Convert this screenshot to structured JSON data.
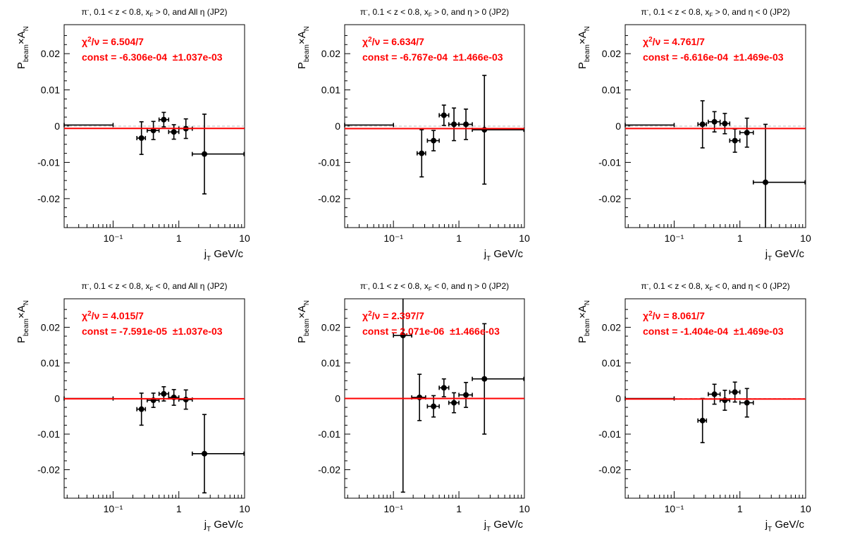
{
  "colors": {
    "fit": "#ff0000",
    "points": "#000000",
    "zero_line": "#bbbbbb",
    "background": "#ffffff"
  },
  "chart_data": [
    {
      "type": "scatter",
      "title": "π⁻, 0.1 < z < 0.8, x_F > 0, and All η (JP2)",
      "title_parts": {
        "prefix": "π",
        "prefix_sup": "-",
        "mid": ", 0.1 < z < 0.8, x",
        "mid_sub": "F",
        "suffix": " > 0, and All η (JP2)"
      },
      "xlabel": "j_T GeV/c",
      "xlabel_parts": {
        "main": "j",
        "sub": "T",
        "unit": "GeV/c"
      },
      "ylabel": "P_beam×A_N",
      "ylabel_parts": {
        "p": "P",
        "p_sub": "beam",
        "times": "×A",
        "a_sub": "N"
      },
      "xscale": "log",
      "xlim": [
        0.018,
        10
      ],
      "ylim": [
        -0.028,
        0.028
      ],
      "yticks": [
        "-0.02",
        "-0.01",
        "0",
        "0.01",
        "0.02"
      ],
      "ytick_values": [
        -0.02,
        -0.01,
        0,
        0.01,
        0.02
      ],
      "xticks": [
        "10⁻¹",
        "1",
        "10"
      ],
      "xtick_values": [
        0.1,
        1,
        10
      ],
      "points": [
        {
          "x": 0.055,
          "y": 0.0003,
          "xlo": 0.018,
          "xhi": 0.1,
          "yerr": 0
        },
        {
          "x": 0.27,
          "y": -0.0033,
          "xlo": 0.23,
          "xhi": 0.31,
          "yerr": 0.0045
        },
        {
          "x": 0.41,
          "y": -0.0012,
          "xlo": 0.33,
          "xhi": 0.5,
          "yerr": 0.0025
        },
        {
          "x": 0.59,
          "y": 0.0018,
          "xlo": 0.5,
          "xhi": 0.7,
          "yerr": 0.002
        },
        {
          "x": 0.84,
          "y": -0.0016,
          "xlo": 0.7,
          "xhi": 1.0,
          "yerr": 0.002
        },
        {
          "x": 1.28,
          "y": -0.0007,
          "xlo": 1.0,
          "xhi": 1.6,
          "yerr": 0.0027
        },
        {
          "x": 2.45,
          "y": -0.0077,
          "xlo": 1.6,
          "xhi": 9.8,
          "yerr": 0.011
        }
      ],
      "fit": {
        "chi2_label": "χ²/ν = 6.504/7",
        "chi_parts": {
          "chi": "χ",
          "sup": "2",
          "rest": "/ν = 6.504/7"
        },
        "const_label": "const = -6.306e-04  ±1.037e-03",
        "value": -0.0006306
      }
    },
    {
      "type": "scatter",
      "title": "π⁻, 0.1 < z < 0.8, x_F > 0, and η > 0 (JP2)",
      "title_parts": {
        "prefix": "π",
        "prefix_sup": "-",
        "mid": ", 0.1 < z < 0.8, x",
        "mid_sub": "F",
        "suffix": " > 0, and  η > 0 (JP2)"
      },
      "xlabel": "j_T GeV/c",
      "xlabel_parts": {
        "main": "j",
        "sub": "T",
        "unit": "GeV/c"
      },
      "ylabel": "P_beam×A_N",
      "ylabel_parts": {
        "p": "P",
        "p_sub": "beam",
        "times": "×A",
        "a_sub": "N"
      },
      "xscale": "log",
      "xlim": [
        0.018,
        10
      ],
      "ylim": [
        -0.028,
        0.028
      ],
      "yticks": [
        "-0.02",
        "-0.01",
        "0",
        "0.01",
        "0.02"
      ],
      "ytick_values": [
        -0.02,
        -0.01,
        0,
        0.01,
        0.02
      ],
      "xticks": [
        "10⁻¹",
        "1",
        "10"
      ],
      "xtick_values": [
        0.1,
        1,
        10
      ],
      "points": [
        {
          "x": 0.055,
          "y": 0.0003,
          "xlo": 0.018,
          "xhi": 0.1,
          "yerr": 0
        },
        {
          "x": 0.27,
          "y": -0.0075,
          "xlo": 0.23,
          "xhi": 0.31,
          "yerr": 0.0065
        },
        {
          "x": 0.41,
          "y": -0.004,
          "xlo": 0.33,
          "xhi": 0.5,
          "yerr": 0.0028
        },
        {
          "x": 0.59,
          "y": 0.003,
          "xlo": 0.5,
          "xhi": 0.7,
          "yerr": 0.0028
        },
        {
          "x": 0.84,
          "y": 0.0005,
          "xlo": 0.7,
          "xhi": 1.0,
          "yerr": 0.0045
        },
        {
          "x": 1.28,
          "y": 0.0005,
          "xlo": 1.0,
          "xhi": 1.6,
          "yerr": 0.0042
        },
        {
          "x": 2.45,
          "y": -0.001,
          "xlo": 1.6,
          "xhi": 9.8,
          "yerr": 0.015
        }
      ],
      "fit": {
        "chi2_label": "χ²/ν = 6.634/7",
        "chi_parts": {
          "chi": "χ",
          "sup": "2",
          "rest": "/ν = 6.634/7"
        },
        "const_label": "const = -6.767e-04  ±1.466e-03",
        "value": -0.0006767
      }
    },
    {
      "type": "scatter",
      "title": "π⁻, 0.1 < z < 0.8, x_F > 0, and η < 0 (JP2)",
      "title_parts": {
        "prefix": "π",
        "prefix_sup": "-",
        "mid": ", 0.1 < z < 0.8, x",
        "mid_sub": "F",
        "suffix": " > 0, and  η < 0 (JP2)"
      },
      "xlabel": "j_T GeV/c",
      "xlabel_parts": {
        "main": "j",
        "sub": "T",
        "unit": "GeV/c"
      },
      "ylabel": "P_beam×A_N",
      "ylabel_parts": {
        "p": "P",
        "p_sub": "beam",
        "times": "×A",
        "a_sub": "N"
      },
      "xscale": "log",
      "xlim": [
        0.018,
        10
      ],
      "ylim": [
        -0.028,
        0.028
      ],
      "yticks": [
        "-0.02",
        "-0.01",
        "0",
        "0.01",
        "0.02"
      ],
      "ytick_values": [
        -0.02,
        -0.01,
        0,
        0.01,
        0.02
      ],
      "xticks": [
        "10⁻¹",
        "1",
        "10"
      ],
      "xtick_values": [
        0.1,
        1,
        10
      ],
      "points": [
        {
          "x": 0.055,
          "y": 0.0003,
          "xlo": 0.018,
          "xhi": 0.1,
          "yerr": 0
        },
        {
          "x": 0.27,
          "y": 0.0005,
          "xlo": 0.23,
          "xhi": 0.31,
          "yerr": 0.0065
        },
        {
          "x": 0.41,
          "y": 0.0012,
          "xlo": 0.33,
          "xhi": 0.5,
          "yerr": 0.0028
        },
        {
          "x": 0.59,
          "y": 0.0007,
          "xlo": 0.5,
          "xhi": 0.7,
          "yerr": 0.0028
        },
        {
          "x": 0.84,
          "y": -0.004,
          "xlo": 0.7,
          "xhi": 1.0,
          "yerr": 0.0032
        },
        {
          "x": 1.28,
          "y": -0.0018,
          "xlo": 1.0,
          "xhi": 1.6,
          "yerr": 0.004
        },
        {
          "x": 2.45,
          "y": -0.0155,
          "xlo": 1.6,
          "xhi": 9.8,
          "yerr": 0.016
        }
      ],
      "fit": {
        "chi2_label": "χ²/ν = 4.761/7",
        "chi_parts": {
          "chi": "χ",
          "sup": "2",
          "rest": "/ν = 4.761/7"
        },
        "const_label": "const = -6.616e-04  ±1.469e-03",
        "value": -0.0006616
      }
    },
    {
      "type": "scatter",
      "title": "π⁻, 0.1 < z < 0.8, x_F < 0, and All η (JP2)",
      "title_parts": {
        "prefix": "π",
        "prefix_sup": "-",
        "mid": ", 0.1 < z < 0.8, x",
        "mid_sub": "F",
        "suffix": " < 0, and All η (JP2)"
      },
      "xlabel": "j_T GeV/c",
      "xlabel_parts": {
        "main": "j",
        "sub": "T",
        "unit": "GeV/c"
      },
      "ylabel": "P_beam×A_N",
      "ylabel_parts": {
        "p": "P",
        "p_sub": "beam",
        "times": "×A",
        "a_sub": "N"
      },
      "xscale": "log",
      "xlim": [
        0.018,
        10
      ],
      "ylim": [
        -0.028,
        0.028
      ],
      "yticks": [
        "-0.02",
        "-0.01",
        "0",
        "0.01",
        "0.02"
      ],
      "ytick_values": [
        -0.02,
        -0.01,
        0,
        0.01,
        0.02
      ],
      "xticks": [
        "10⁻¹",
        "1",
        "10"
      ],
      "xtick_values": [
        0.1,
        1,
        10
      ],
      "points": [
        {
          "x": 0.055,
          "y": 0.0,
          "xlo": 0.018,
          "xhi": 0.1,
          "yerr": 0
        },
        {
          "x": 0.27,
          "y": -0.003,
          "xlo": 0.23,
          "xhi": 0.31,
          "yerr": 0.0045
        },
        {
          "x": 0.41,
          "y": -0.0005,
          "xlo": 0.33,
          "xhi": 0.5,
          "yerr": 0.002
        },
        {
          "x": 0.59,
          "y": 0.0013,
          "xlo": 0.5,
          "xhi": 0.7,
          "yerr": 0.002
        },
        {
          "x": 0.84,
          "y": 0.0003,
          "xlo": 0.7,
          "xhi": 1.0,
          "yerr": 0.0022
        },
        {
          "x": 1.28,
          "y": -0.0003,
          "xlo": 1.0,
          "xhi": 1.6,
          "yerr": 0.0027
        },
        {
          "x": 2.45,
          "y": -0.0155,
          "xlo": 1.6,
          "xhi": 9.8,
          "yerr": 0.011
        }
      ],
      "fit": {
        "chi2_label": "χ²/ν = 4.015/7",
        "chi_parts": {
          "chi": "χ",
          "sup": "2",
          "rest": "/ν = 4.015/7"
        },
        "const_label": "const = -7.591e-05  ±1.037e-03",
        "value": -7.591e-05
      }
    },
    {
      "type": "scatter",
      "title": "π⁻, 0.1 < z < 0.8, x_F < 0, and η > 0 (JP2)",
      "title_parts": {
        "prefix": "π",
        "prefix_sup": "-",
        "mid": ", 0.1 < z < 0.8, x",
        "mid_sub": "F",
        "suffix": " < 0, and  η > 0 (JP2)"
      },
      "xlabel": "j_T GeV/c",
      "xlabel_parts": {
        "main": "j",
        "sub": "T",
        "unit": "GeV/c"
      },
      "ylabel": "P_beam×A_N",
      "ylabel_parts": {
        "p": "P",
        "p_sub": "beam",
        "times": "×A",
        "a_sub": "N"
      },
      "xscale": "log",
      "xlim": [
        0.018,
        10
      ],
      "ylim": [
        -0.028,
        0.028
      ],
      "yticks": [
        "-0.02",
        "-0.01",
        "0",
        "0.01",
        "0.02"
      ],
      "ytick_values": [
        -0.02,
        -0.01,
        0,
        0.01,
        0.02
      ],
      "xticks": [
        "10⁻¹",
        "1",
        "10"
      ],
      "xtick_values": [
        0.1,
        1,
        10
      ],
      "points": [
        {
          "x": 0.14,
          "y": 0.0177,
          "xlo": 0.1,
          "xhi": 0.19,
          "yerr": 0.044
        },
        {
          "x": 0.25,
          "y": 0.0003,
          "xlo": 0.19,
          "xhi": 0.31,
          "yerr": 0.0065
        },
        {
          "x": 0.41,
          "y": -0.0022,
          "xlo": 0.33,
          "xhi": 0.5,
          "yerr": 0.003
        },
        {
          "x": 0.59,
          "y": 0.003,
          "xlo": 0.5,
          "xhi": 0.7,
          "yerr": 0.0025
        },
        {
          "x": 0.84,
          "y": -0.0012,
          "xlo": 0.7,
          "xhi": 1.0,
          "yerr": 0.0028
        },
        {
          "x": 1.28,
          "y": 0.001,
          "xlo": 1.0,
          "xhi": 1.6,
          "yerr": 0.0035
        },
        {
          "x": 2.45,
          "y": 0.0055,
          "xlo": 1.6,
          "xhi": 9.8,
          "yerr": 0.0155
        }
      ],
      "fit": {
        "chi2_label": "χ²/ν = 2.397/7",
        "chi_parts": {
          "chi": "χ",
          "sup": "2",
          "rest": "/ν = 2.397/7"
        },
        "const_label": "const = 2.071e-06  ±1.466e-03",
        "value": 2.071e-06
      }
    },
    {
      "type": "scatter",
      "title": "π⁻, 0.1 < z < 0.8, x_F < 0, and η < 0 (JP2)",
      "title_parts": {
        "prefix": "π",
        "prefix_sup": "-",
        "mid": ", 0.1 < z < 0.8, x",
        "mid_sub": "F",
        "suffix": " < 0, and  η < 0 (JP2)"
      },
      "xlabel": "j_T GeV/c",
      "xlabel_parts": {
        "main": "j",
        "sub": "T",
        "unit": "GeV/c"
      },
      "ylabel": "P_beam×A_N",
      "ylabel_parts": {
        "p": "P",
        "p_sub": "beam",
        "times": "×A",
        "a_sub": "N"
      },
      "xscale": "log",
      "xlim": [
        0.018,
        10
      ],
      "ylim": [
        -0.028,
        0.028
      ],
      "yticks": [
        "-0.02",
        "-0.01",
        "0",
        "0.01",
        "0.02"
      ],
      "ytick_values": [
        -0.02,
        -0.01,
        0,
        0.01,
        0.02
      ],
      "xticks": [
        "10⁻¹",
        "1",
        "10"
      ],
      "xtick_values": [
        0.1,
        1,
        10
      ],
      "points": [
        {
          "x": 0.055,
          "y": 0.0,
          "xlo": 0.018,
          "xhi": 0.1,
          "yerr": 0
        },
        {
          "x": 0.27,
          "y": -0.0062,
          "xlo": 0.23,
          "xhi": 0.31,
          "yerr": 0.0062
        },
        {
          "x": 0.41,
          "y": 0.0012,
          "xlo": 0.33,
          "xhi": 0.5,
          "yerr": 0.0028
        },
        {
          "x": 0.59,
          "y": -0.0005,
          "xlo": 0.5,
          "xhi": 0.7,
          "yerr": 0.0028
        },
        {
          "x": 0.84,
          "y": 0.0018,
          "xlo": 0.7,
          "xhi": 1.0,
          "yerr": 0.0028
        },
        {
          "x": 1.28,
          "y": -0.0012,
          "xlo": 1.0,
          "xhi": 1.6,
          "yerr": 0.004
        }
      ],
      "fit": {
        "chi2_label": "χ²/ν = 8.061/7",
        "chi_parts": {
          "chi": "χ",
          "sup": "2",
          "rest": "/ν = 8.061/7"
        },
        "const_label": "const = -1.404e-04  ±1.469e-03",
        "value": -0.0001404
      }
    }
  ]
}
